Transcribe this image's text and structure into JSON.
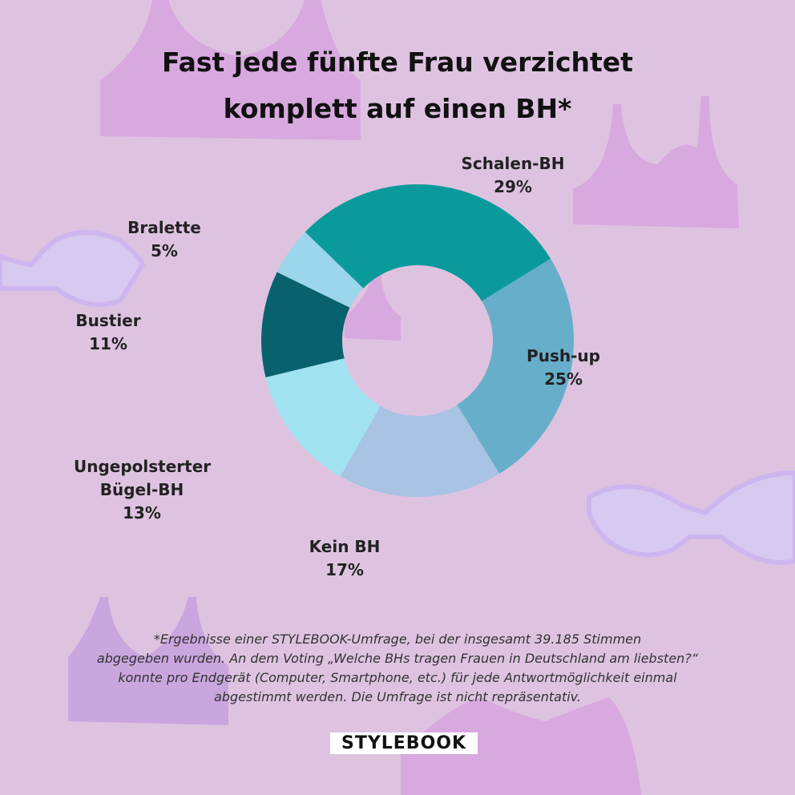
{
  "chart_data": {
    "type": "donut",
    "title": [
      "Fast jede fünfte Frau verzichtet",
      "komplett auf einen BH*"
    ],
    "categories": [
      "Schalen-BH",
      "Push-up",
      "Kein BH",
      "Ungepolsterter Bügel-BH",
      "Bustier",
      "Bralette"
    ],
    "values": [
      29,
      25,
      17,
      13,
      11,
      5
    ],
    "value_labels": [
      "29%",
      "25%",
      "17%",
      "13%",
      "11%",
      "5%"
    ],
    "colors": [
      "#0a9a9c",
      "#67aeca",
      "#a9c3e3",
      "#a0e2f0",
      "#07626e",
      "#9bd6ec"
    ],
    "footnote": [
      "*Ergebnisse einer STYLEBOOK-Umfrage, bei der  insgesamt 39.185 Stimmen",
      "abgegeben wurden. An dem Voting „Welche BHs tragen Frauen in Deutschland am liebsten?“",
      "konnte pro Endgerät (Computer, Smartphone, etc.) für jede Antwortmöglichkeit einmal",
      "abgestimmt werden. Die Umfrage ist nicht repräsentativ."
    ],
    "brand": "STYLEBOOK"
  }
}
